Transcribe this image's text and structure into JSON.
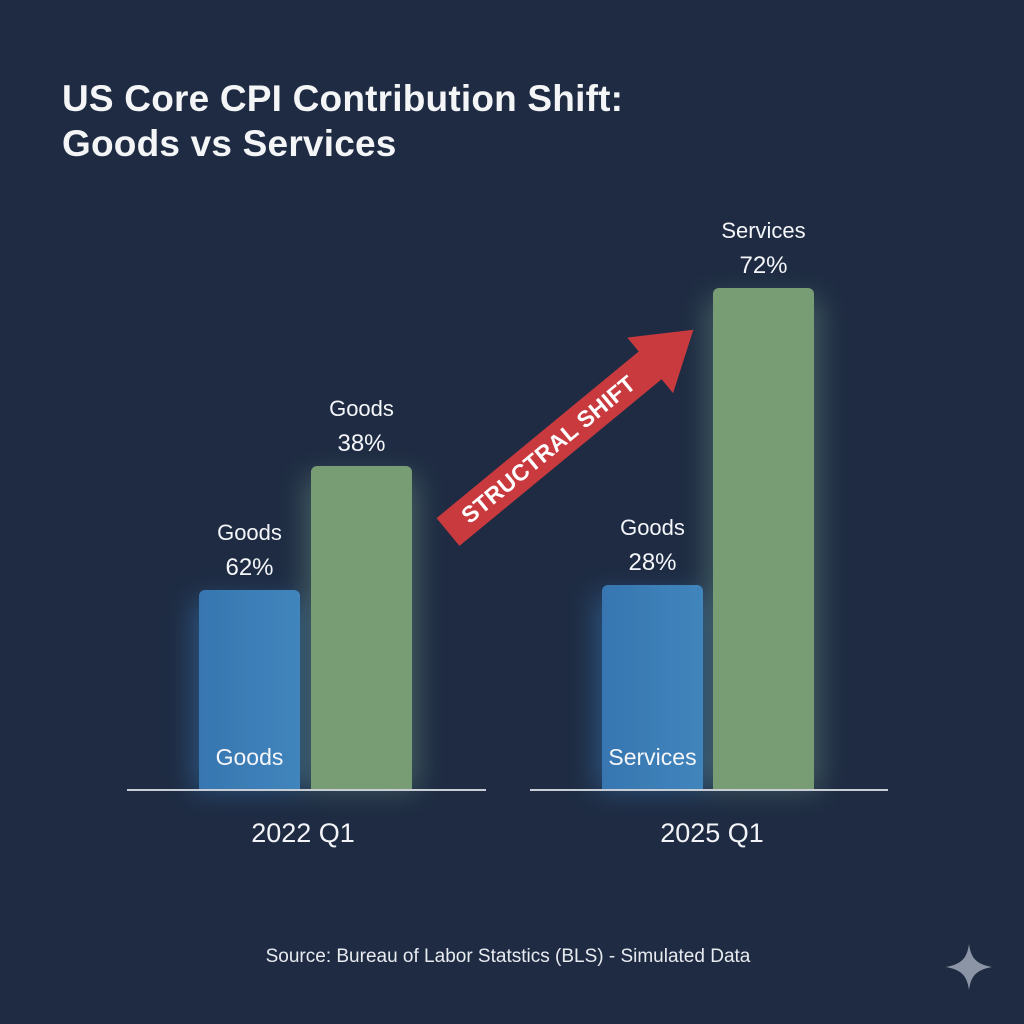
{
  "title_lines": [
    "US Core CPI Contribution Shift:",
    "Goods vs Services"
  ],
  "source": "Source: Bureau of Labor Statstics (BLS) - Simulated Data",
  "annotation": {
    "text": "STRUCTRAL SHIFT",
    "color": "#cc3b40"
  },
  "icons": {
    "corner": "sparkle-icon"
  },
  "colors": {
    "background": "#1e2b42",
    "goods": "#3b7bb5",
    "services": "#789d74",
    "axis": "#c8cdd6",
    "text": "#ffffff"
  },
  "chart_data": {
    "type": "bar",
    "title": "US Core CPI Contribution Shift: Goods vs Services",
    "xlabel": "",
    "ylabel": "",
    "grid": false,
    "categories": [
      "2022 Q1",
      "2025 Q1"
    ],
    "groups": [
      {
        "category": "2022 Q1",
        "bars": [
          {
            "series": "goods",
            "label_top": "Goods",
            "value": 62,
            "value_label": "62%",
            "inner_label": "Goods"
          },
          {
            "series": "services",
            "label_top": "Goods",
            "value": 38,
            "value_label": "38%",
            "inner_label": ""
          }
        ]
      },
      {
        "category": "2025 Q1",
        "bars": [
          {
            "series": "goods",
            "label_top": "Goods",
            "value": 28,
            "value_label": "28%",
            "inner_label": "Services"
          },
          {
            "series": "services",
            "label_top": "Services",
            "value": 72,
            "value_label": "72%",
            "inner_label": ""
          }
        ]
      }
    ],
    "annotations": [
      "STRUCTRAL SHIFT"
    ]
  }
}
